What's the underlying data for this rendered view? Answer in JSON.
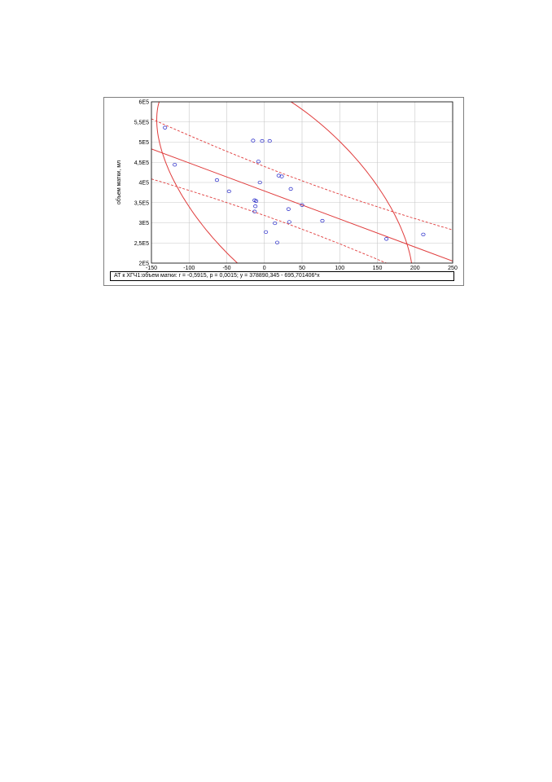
{
  "chart_data": {
    "type": "scatter",
    "title": "",
    "xlabel": "",
    "ylabel": "объем матки, мл",
    "xlim": [
      -150,
      250
    ],
    "ylim": [
      200000,
      600000
    ],
    "x_ticks": [
      -150,
      -100,
      -50,
      0,
      50,
      100,
      150,
      200,
      250
    ],
    "y_ticks": [
      200000,
      250000,
      300000,
      350000,
      400000,
      450000,
      500000,
      550000,
      600000
    ],
    "x_tick_labels": [
      "-150",
      "-100",
      "-50",
      "0",
      "50",
      "100",
      "150",
      "200",
      "250"
    ],
    "y_tick_labels": [
      "2E5",
      "2,5E5",
      "3E5",
      "3,5E5",
      "4E5",
      "4,5E5",
      "5E5",
      "5,5E5",
      "6E5"
    ],
    "grid": true,
    "legend": "bottom",
    "legend_text": "АТ к ХГЧ1:объем матки:   r = -0,5915,  p = 0,0015;  y = 378890,345 - 695,701406*x",
    "points": [
      {
        "x": -132,
        "y": 536000
      },
      {
        "x": -119,
        "y": 444000
      },
      {
        "x": -63,
        "y": 406000
      },
      {
        "x": -47,
        "y": 378000
      },
      {
        "x": -15,
        "y": 504000
      },
      {
        "x": -3,
        "y": 503000
      },
      {
        "x": 7,
        "y": 503000
      },
      {
        "x": -8,
        "y": 452000
      },
      {
        "x": -6,
        "y": 400000
      },
      {
        "x": 19,
        "y": 417000
      },
      {
        "x": 23,
        "y": 415000
      },
      {
        "x": 35,
        "y": 384000
      },
      {
        "x": -13,
        "y": 356000
      },
      {
        "x": -11,
        "y": 354000
      },
      {
        "x": -12,
        "y": 341000
      },
      {
        "x": -13,
        "y": 328000
      },
      {
        "x": 32,
        "y": 334000
      },
      {
        "x": 50,
        "y": 344000
      },
      {
        "x": 77,
        "y": 305000
      },
      {
        "x": 33,
        "y": 302000
      },
      {
        "x": 14,
        "y": 299000
      },
      {
        "x": 2,
        "y": 277000
      },
      {
        "x": 17,
        "y": 251000
      },
      {
        "x": 162,
        "y": 260000
      },
      {
        "x": 211,
        "y": 271000
      }
    ],
    "regression": {
      "intercept": 378890.345,
      "slope": -695.701406
    },
    "conf_band": {
      "dx": 40,
      "dy": 60000
    },
    "ellipse": {
      "cx": 27,
      "cy": 360000,
      "rx": 170,
      "ry": 250000,
      "theta_deg": 0
    },
    "colors": {
      "line": "#e03c3c",
      "point": "#1f22c7",
      "grid": "#c8c8c8"
    }
  }
}
